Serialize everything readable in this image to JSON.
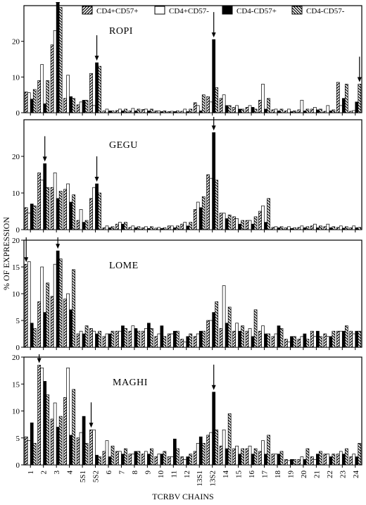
{
  "figure": {
    "ylabel": "% OF EXPRESSION",
    "xlabel": "TCRBV CHAINS",
    "legend": [
      {
        "label": "CD4+CD57+",
        "pattern": "hatch-fwd"
      },
      {
        "label": "CD4+CD57-",
        "pattern": "white"
      },
      {
        "label": "CD4-CD57+",
        "pattern": "black"
      },
      {
        "label": "CD4-CD57-",
        "pattern": "hatch-back"
      }
    ]
  },
  "chart_data": [
    {
      "type": "bar",
      "title": "ROPI",
      "ylim": [
        0,
        30
      ],
      "yticks": [
        0,
        10,
        20
      ],
      "categories": [
        "1",
        "2",
        "3",
        "4",
        "5S1",
        "5S2",
        "6",
        "7",
        "8",
        "9",
        "10",
        "11",
        "12",
        "13S1",
        "13S2",
        "14",
        "15",
        "16",
        "17",
        "18",
        "19",
        "20",
        "21",
        "22",
        "23",
        "24"
      ],
      "series": [
        {
          "name": "CD4+CD57+",
          "values": [
            5.8,
            9.0,
            19.0,
            4.0,
            2.2,
            11.0,
            0.5,
            0.6,
            0.5,
            0.9,
            0.5,
            0.3,
            0.4,
            2.8,
            4.5,
            4.0,
            1.5,
            1.5,
            3.5,
            0.8,
            0.5,
            0.8,
            1.0,
            0.4,
            8.5,
            0.4
          ]
        },
        {
          "name": "CD4+CD57-",
          "values": [
            5.6,
            13.5,
            23.0,
            10.5,
            3.0,
            2.0,
            1.0,
            1.0,
            1.2,
            1.0,
            0.5,
            0.4,
            1.0,
            2.0,
            3.0,
            5.0,
            2.0,
            2.0,
            8.0,
            1.0,
            1.0,
            3.5,
            1.5,
            2.0,
            2.0,
            0.6
          ]
        },
        {
          "name": "CD4-CD57+",
          "values": [
            3.8,
            2.5,
            30.5,
            4.5,
            3.5,
            14.0,
            0.5,
            0.5,
            0.5,
            0.5,
            0.3,
            0.3,
            0.3,
            0.5,
            20.5,
            2.0,
            1.0,
            1.5,
            1.0,
            0.5,
            0.3,
            0.5,
            0.8,
            0.5,
            4.0,
            3.0
          ]
        },
        {
          "name": "CD4-CD57-",
          "values": [
            6.5,
            9.0,
            29.5,
            4.0,
            3.5,
            13.0,
            0.5,
            1.0,
            1.0,
            1.0,
            0.5,
            0.5,
            1.0,
            5.0,
            7.0,
            2.0,
            1.0,
            1.0,
            4.0,
            1.0,
            0.5,
            1.0,
            1.0,
            0.8,
            8.0,
            8.0
          ]
        }
      ],
      "arrows": [
        {
          "category": 2,
          "series": 2
        },
        {
          "category": 5,
          "series": 2
        },
        {
          "category": 14,
          "series": 2
        },
        {
          "category": 25,
          "series": 3
        }
      ]
    },
    {
      "type": "bar",
      "title": "GEGU",
      "ylim": [
        0,
        30
      ],
      "yticks": [
        0,
        10,
        20
      ],
      "categories": [
        "1",
        "2",
        "3",
        "4",
        "5S1",
        "5S2",
        "6",
        "7",
        "8",
        "9",
        "10",
        "11",
        "12",
        "13S1",
        "13S2",
        "14",
        "15",
        "16",
        "17",
        "18",
        "19",
        "20",
        "21",
        "22",
        "23",
        "24"
      ],
      "series": [
        {
          "name": "CD4+CD57+",
          "values": [
            6.0,
            15.5,
            11.5,
            11.0,
            2.5,
            8.5,
            0.5,
            1.5,
            0.6,
            0.5,
            0.4,
            1.0,
            1.5,
            5.5,
            15.0,
            4.5,
            3.5,
            2.5,
            5.0,
            0.6,
            0.5,
            0.6,
            1.0,
            0.8,
            0.6,
            0.5
          ]
        },
        {
          "name": "CD4+CD57-",
          "values": [
            4.5,
            13.5,
            15.5,
            12.5,
            5.5,
            11.5,
            1.0,
            2.0,
            1.0,
            0.8,
            0.6,
            1.0,
            2.0,
            7.5,
            14.0,
            4.5,
            3.0,
            2.5,
            6.5,
            0.8,
            0.8,
            1.0,
            1.5,
            1.5,
            1.0,
            1.0
          ]
        },
        {
          "name": "CD4-CD57+",
          "values": [
            7.0,
            18.0,
            8.5,
            7.5,
            2.0,
            12.5,
            0.5,
            1.5,
            0.5,
            0.3,
            0.3,
            0.5,
            1.0,
            6.0,
            26.5,
            3.0,
            1.5,
            1.5,
            2.0,
            0.5,
            0.3,
            0.5,
            0.5,
            0.5,
            0.4,
            0.5
          ]
        },
        {
          "name": "CD4-CD57-",
          "values": [
            6.5,
            11.5,
            10.5,
            9.5,
            2.5,
            10.0,
            0.8,
            2.0,
            0.8,
            0.8,
            0.5,
            1.0,
            2.0,
            9.0,
            13.5,
            4.0,
            2.5,
            3.5,
            8.5,
            0.8,
            0.5,
            0.8,
            1.0,
            0.8,
            0.8,
            0.6
          ]
        }
      ],
      "arrows": [
        {
          "category": 1,
          "series": 2
        },
        {
          "category": 5,
          "series": 2
        },
        {
          "category": 14,
          "series": 2
        }
      ]
    },
    {
      "type": "bar",
      "title": "LOME",
      "ylim": [
        0,
        20
      ],
      "yticks": [
        0,
        5,
        10,
        15,
        20
      ],
      "categories": [
        "1",
        "2",
        "3",
        "4",
        "5S1",
        "5S2",
        "6",
        "7",
        "8",
        "9",
        "10",
        "11",
        "12",
        "13S1",
        "13S2",
        "14",
        "15",
        "16",
        "17",
        "18",
        "19",
        "20",
        "21",
        "22",
        "23",
        "24"
      ],
      "series": [
        {
          "name": "CD4+CD57+",
          "values": [
            15.5,
            8.5,
            9.5,
            9.0,
            2.5,
            3.5,
            2.0,
            3.0,
            3.0,
            3.0,
            2.0,
            2.5,
            1.5,
            2.0,
            5.0,
            3.5,
            3.0,
            3.0,
            3.0,
            2.0,
            1.5,
            1.5,
            3.0,
            2.5,
            3.0,
            3.0
          ]
        },
        {
          "name": "CD4+CD57-",
          "values": [
            16.0,
            15.0,
            15.5,
            10.0,
            3.0,
            3.0,
            2.5,
            3.0,
            4.0,
            3.5,
            2.5,
            2.5,
            1.0,
            2.5,
            5.0,
            11.5,
            4.5,
            3.5,
            4.0,
            2.5,
            1.0,
            2.0,
            2.0,
            2.0,
            3.0,
            2.5
          ]
        },
        {
          "name": "CD4-CD57+",
          "values": [
            4.5,
            6.5,
            18.0,
            7.0,
            2.5,
            2.5,
            2.5,
            4.0,
            3.5,
            4.5,
            4.0,
            3.0,
            2.0,
            3.0,
            6.5,
            4.5,
            3.0,
            2.0,
            2.5,
            4.0,
            2.0,
            2.5,
            3.0,
            2.0,
            3.0,
            3.0
          ]
        },
        {
          "name": "CD4-CD57-",
          "values": [
            3.5,
            12.0,
            16.5,
            14.5,
            4.0,
            3.0,
            3.0,
            3.5,
            3.0,
            3.5,
            2.0,
            3.0,
            2.5,
            3.0,
            8.5,
            7.5,
            4.0,
            7.0,
            2.5,
            3.5,
            2.0,
            1.5,
            2.0,
            3.0,
            4.0,
            3.0
          ]
        }
      ],
      "arrows": [
        {
          "category": 0,
          "series": 0
        },
        {
          "category": 2,
          "series": 2
        }
      ]
    },
    {
      "type": "bar",
      "title": "MAGHI",
      "ylim": [
        0,
        20
      ],
      "yticks": [
        0,
        5,
        10,
        15,
        20
      ],
      "categories": [
        "1",
        "2",
        "3",
        "4",
        "5S1",
        "5S2",
        "6",
        "7",
        "8",
        "9",
        "10",
        "11",
        "12",
        "13S1",
        "13S2",
        "14",
        "15",
        "16",
        "17",
        "18",
        "19",
        "20",
        "21",
        "22",
        "23",
        "24"
      ],
      "series": [
        {
          "name": "CD4+CD57+",
          "values": [
            5.2,
            18.5,
            8.5,
            12.5,
            5.0,
            6.5,
            2.5,
            2.5,
            2.0,
            2.0,
            1.5,
            1.5,
            1.5,
            2.5,
            5.5,
            3.5,
            3.0,
            3.0,
            2.5,
            2.0,
            1.0,
            1.0,
            1.5,
            2.0,
            2.0,
            1.5
          ]
        },
        {
          "name": "CD4+CD57-",
          "values": [
            4.5,
            18.0,
            11.5,
            18.0,
            6.0,
            6.5,
            4.5,
            2.5,
            2.0,
            2.5,
            2.0,
            1.5,
            1.0,
            4.0,
            6.0,
            6.5,
            3.5,
            3.5,
            4.5,
            2.0,
            0.8,
            1.5,
            1.0,
            2.0,
            2.5,
            2.0
          ]
        },
        {
          "name": "CD4-CD57+",
          "values": [
            7.8,
            15.5,
            7.0,
            5.5,
            9.0,
            1.8,
            1.5,
            2.0,
            2.5,
            2.0,
            2.0,
            4.8,
            1.5,
            5.2,
            13.5,
            3.0,
            2.0,
            2.0,
            2.0,
            2.0,
            1.0,
            1.0,
            2.0,
            1.5,
            2.0,
            1.5
          ]
        },
        {
          "name": "CD4-CD57-",
          "values": [
            4.0,
            13.0,
            9.0,
            14.0,
            4.0,
            1.5,
            3.5,
            3.0,
            2.5,
            3.0,
            2.5,
            3.0,
            2.0,
            4.0,
            6.5,
            9.5,
            3.0,
            3.0,
            5.5,
            2.5,
            1.0,
            3.0,
            2.5,
            2.0,
            3.0,
            4.0
          ]
        }
      ],
      "arrows": [
        {
          "category": 1,
          "series": 0
        },
        {
          "category": 5,
          "series": 0
        },
        {
          "category": 14,
          "series": 2
        }
      ]
    }
  ]
}
